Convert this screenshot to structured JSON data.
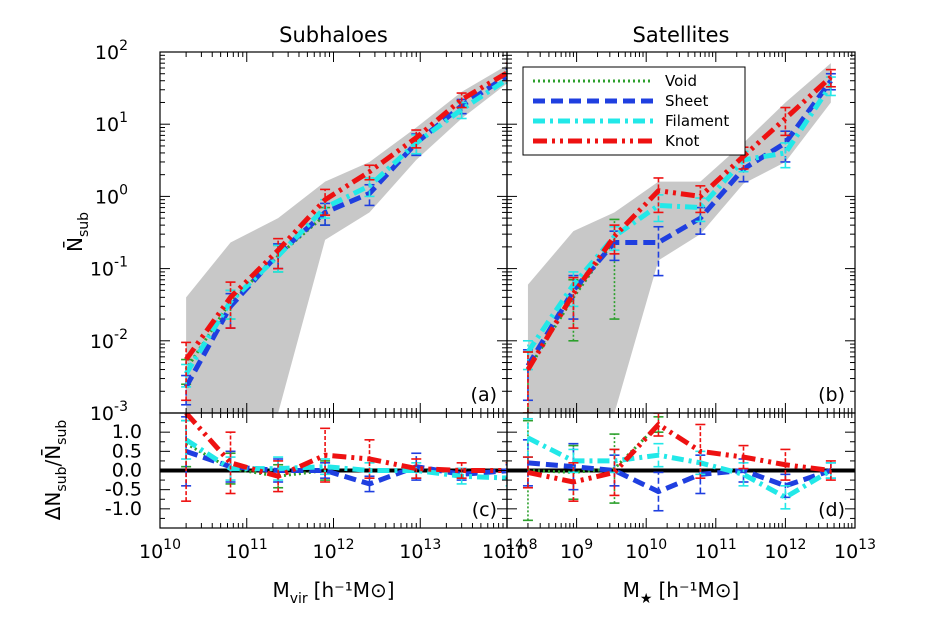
{
  "colors": {
    "void": "#2ca02c",
    "sheet": "#1f3fe0",
    "filament": "#22e8e8",
    "knot": "#ee1111",
    "band": "#c8c8c8"
  },
  "chart_data": [
    {
      "panel": "a",
      "type": "line",
      "title": "Subhaloes",
      "tag": "(a)",
      "xlabel_main": "M",
      "xlabel_sub": "vir",
      "xlabel_unit": "[h⁻¹M⊙]",
      "ylabel_main": "N̄",
      "ylabel_sub": "sub",
      "xscale": "log",
      "yscale": "log",
      "xlim": [
        10000000000.0,
        100000000000000.0
      ],
      "ylim": [
        0.001,
        100
      ],
      "xticks": [
        {
          "base": "10",
          "exp": "10"
        },
        {
          "base": "10",
          "exp": "11"
        },
        {
          "base": "10",
          "exp": "12"
        },
        {
          "base": "10",
          "exp": "13"
        },
        {
          "base": "10",
          "exp": "14"
        }
      ],
      "yticks": [
        {
          "base": "10",
          "exp": "-3"
        },
        {
          "base": "10",
          "exp": "-2"
        },
        {
          "base": "10",
          "exp": "-1"
        },
        {
          "base": "10",
          "exp": "0"
        },
        {
          "base": "10",
          "exp": "1"
        },
        {
          "base": "10",
          "exp": "2"
        }
      ],
      "legend": "none",
      "band": {
        "x": [
          20000000000.0,
          65000000000.0,
          230000000000.0,
          800000000000.0,
          2600000000000.0,
          9000000000000.0,
          30000000000000.0,
          110000000000000.0
        ],
        "upper": [
          0.04,
          0.23,
          0.5,
          1.6,
          3.0,
          9.0,
          28,
          70
        ],
        "lower": [
          0.001,
          0.001,
          0.001,
          0.25,
          0.6,
          3.2,
          12,
          40
        ]
      },
      "series": [
        {
          "key": "void",
          "x": [
            20000000000.0,
            65000000000.0,
            230000000000.0,
            800000000000.0
          ],
          "y": [
            0.004,
            0.035,
            0.15,
            0.55
          ],
          "err": [
            0.0015,
            0.015,
            0.06,
            0.15
          ]
        },
        {
          "key": "sheet",
          "x": [
            20000000000.0,
            65000000000.0,
            230000000000.0,
            800000000000.0,
            2600000000000.0,
            9000000000000.0,
            30000000000000.0,
            110000000000000.0
          ],
          "y": [
            0.0023,
            0.03,
            0.16,
            0.6,
            1.1,
            5.5,
            18,
            50
          ],
          "err": [
            0.001,
            0.015,
            0.06,
            0.2,
            0.35,
            1.8,
            4,
            8
          ]
        },
        {
          "key": "filament",
          "x": [
            20000000000.0,
            65000000000.0,
            230000000000.0,
            800000000000.0,
            2600000000000.0,
            9000000000000.0,
            30000000000000.0,
            110000000000000.0
          ],
          "y": [
            0.0035,
            0.035,
            0.15,
            0.7,
            1.4,
            5.5,
            16,
            45
          ],
          "err": [
            0.0012,
            0.015,
            0.06,
            0.2,
            0.4,
            1.6,
            4,
            8
          ]
        },
        {
          "key": "knot",
          "x": [
            20000000000.0,
            65000000000.0,
            230000000000.0,
            800000000000.0,
            2600000000000.0,
            9000000000000.0,
            30000000000000.0,
            110000000000000.0
          ],
          "y": [
            0.0055,
            0.04,
            0.18,
            0.9,
            2.2,
            6.5,
            22,
            55
          ],
          "err": [
            0.004,
            0.025,
            0.08,
            0.35,
            0.5,
            1.8,
            5,
            15
          ]
        }
      ]
    },
    {
      "panel": "b",
      "type": "line",
      "title": "Satellites",
      "tag": "(b)",
      "xlabel_main": "M",
      "xlabel_sub": "★",
      "xlabel_unit": "[h⁻¹M⊙]",
      "xscale": "log",
      "yscale": "log",
      "xlim": [
        100000000.0,
        10000000000000.0
      ],
      "ylim": [
        0.001,
        100
      ],
      "xticks": [
        {
          "base": "10",
          "exp": "8"
        },
        {
          "base": "10",
          "exp": "9"
        },
        {
          "base": "10",
          "exp": "10"
        },
        {
          "base": "10",
          "exp": "11"
        },
        {
          "base": "10",
          "exp": "12"
        },
        {
          "base": "10",
          "exp": "13"
        }
      ],
      "legend": "top-right",
      "band": {
        "x": [
          200000000.0,
          900000000.0,
          3500000000.0,
          15000000000.0,
          60000000000.0,
          250000000000.0,
          1000000000000.0,
          4500000000000.0
        ],
        "upper": [
          0.06,
          0.33,
          0.6,
          1.6,
          1.6,
          5.5,
          20,
          70
        ],
        "lower": [
          0.001,
          0.001,
          0.001,
          0.13,
          0.3,
          1.5,
          3.0,
          20
        ]
      },
      "series": [
        {
          "key": "void",
          "x": [
            200000000.0,
            900000000.0,
            3500000000.0
          ],
          "y": [
            0.004,
            0.04,
            0.25
          ],
          "err": [
            0.003,
            0.03,
            0.23
          ]
        },
        {
          "key": "sheet",
          "x": [
            200000000.0,
            900000000.0,
            3500000000.0,
            15000000000.0,
            60000000000.0,
            250000000000.0,
            1000000000000.0,
            4500000000000.0
          ],
          "y": [
            0.0045,
            0.05,
            0.23,
            0.23,
            0.5,
            2.4,
            5.5,
            40
          ],
          "err": [
            0.003,
            0.03,
            0.1,
            0.15,
            0.2,
            0.8,
            2.5,
            10
          ]
        },
        {
          "key": "filament",
          "x": [
            200000000.0,
            900000000.0,
            3500000000.0,
            15000000000.0,
            60000000000.0,
            250000000000.0,
            1000000000000.0,
            4500000000000.0
          ],
          "y": [
            0.007,
            0.06,
            0.28,
            0.75,
            0.7,
            3.2,
            4.0,
            35
          ],
          "err": [
            0.003,
            0.03,
            0.1,
            0.3,
            0.25,
            1.0,
            1.5,
            10
          ]
        },
        {
          "key": "knot",
          "x": [
            200000000.0,
            900000000.0,
            3500000000.0,
            15000000000.0,
            60000000000.0,
            250000000000.0,
            1000000000000.0,
            4500000000000.0
          ],
          "y": [
            0.004,
            0.045,
            0.28,
            1.2,
            1.0,
            3.6,
            12,
            45
          ],
          "err": [
            0.003,
            0.03,
            0.12,
            0.6,
            0.4,
            1.2,
            5,
            12
          ]
        }
      ],
      "legend_entries": [
        {
          "key": "void",
          "label": "Void"
        },
        {
          "key": "sheet",
          "label": "Sheet"
        },
        {
          "key": "filament",
          "label": "Filament"
        },
        {
          "key": "knot",
          "label": "Knot"
        }
      ]
    },
    {
      "panel": "c",
      "type": "line",
      "tag": "(c)",
      "ylabel_top": "ΔN",
      "ylabel_top_sub": "sub",
      "ylabel_bottom": "N̄",
      "ylabel_bottom_sub": "sub",
      "xscale": "log",
      "xlim": [
        10000000000.0,
        100000000000000.0
      ],
      "ylim": [
        -1.5,
        1.5
      ],
      "yticks": [
        "-1.0",
        "-0.5",
        "0.0",
        "0.5",
        "1.0"
      ],
      "series": [
        {
          "key": "void",
          "x": [
            20000000000.0,
            65000000000.0,
            230000000000.0,
            800000000000.0
          ],
          "y": [
            0.7,
            0.05,
            -0.15,
            0.0
          ],
          "err": [
            0.6,
            0.4,
            0.3,
            0.25
          ]
        },
        {
          "key": "sheet",
          "x": [
            20000000000.0,
            65000000000.0,
            230000000000.0,
            800000000000.0,
            2600000000000.0,
            9000000000000.0,
            30000000000000.0,
            110000000000000.0
          ],
          "y": [
            0.5,
            0.1,
            0.0,
            0.0,
            -0.35,
            0.1,
            -0.1,
            0.0
          ],
          "err": [
            0.9,
            0.4,
            0.3,
            0.2,
            0.2,
            0.35,
            0.15,
            0.15
          ]
        },
        {
          "key": "filament",
          "x": [
            20000000000.0,
            65000000000.0,
            230000000000.0,
            800000000000.0,
            2600000000000.0,
            9000000000000.0,
            30000000000000.0,
            110000000000000.0
          ],
          "y": [
            0.8,
            0.05,
            0.05,
            0.1,
            0.0,
            0.0,
            -0.15,
            -0.2
          ],
          "err": [
            0.5,
            0.3,
            0.3,
            0.2,
            0.2,
            0.2,
            0.2,
            0.2
          ]
        },
        {
          "key": "knot",
          "x": [
            20000000000.0,
            65000000000.0,
            230000000000.0,
            800000000000.0,
            2600000000000.0,
            9000000000000.0,
            30000000000000.0,
            110000000000000.0
          ],
          "y": [
            1.5,
            0.2,
            -0.15,
            0.4,
            0.3,
            0.05,
            0.0,
            0.0
          ],
          "err": [
            2.3,
            0.8,
            0.4,
            0.7,
            0.5,
            0.25,
            0.2,
            0.2
          ]
        }
      ]
    },
    {
      "panel": "d",
      "type": "line",
      "tag": "(d)",
      "xscale": "log",
      "xlim": [
        100000000.0,
        10000000000000.0
      ],
      "ylim": [
        -1.5,
        1.5
      ],
      "series": [
        {
          "key": "void",
          "x": [
            200000000.0,
            900000000.0,
            3500000000.0,
            15000000000.0
          ],
          "y": [
            0.0,
            -0.05,
            0.05,
            1.2
          ],
          "err": [
            1.3,
            0.7,
            0.9,
            0.2
          ]
        },
        {
          "key": "sheet",
          "x": [
            200000000.0,
            900000000.0,
            3500000000.0,
            15000000000.0,
            60000000000.0,
            250000000000.0,
            1000000000000.0,
            4500000000000.0
          ],
          "y": [
            0.2,
            0.1,
            0.0,
            -0.55,
            -0.1,
            0.0,
            -0.4,
            0.0
          ],
          "err": [
            0.6,
            0.6,
            0.4,
            0.5,
            0.5,
            0.3,
            0.3,
            0.2
          ]
        },
        {
          "key": "filament",
          "x": [
            200000000.0,
            900000000.0,
            3500000000.0,
            15000000000.0,
            60000000000.0,
            250000000000.0,
            1000000000000.0,
            4500000000000.0
          ],
          "y": [
            0.85,
            0.25,
            0.25,
            0.4,
            0.2,
            -0.1,
            -0.7,
            0.0
          ],
          "err": [
            0.5,
            0.3,
            0.3,
            0.3,
            0.3,
            0.3,
            0.3,
            0.2
          ]
        },
        {
          "key": "knot",
          "x": [
            200000000.0,
            900000000.0,
            3500000000.0,
            15000000000.0,
            60000000000.0,
            250000000000.0,
            1000000000000.0,
            4500000000000.0
          ],
          "y": [
            -0.05,
            -0.3,
            -0.05,
            1.2,
            0.5,
            0.35,
            0.15,
            0.0
          ],
          "err": [
            0.4,
            0.5,
            0.6,
            0.3,
            0.7,
            0.3,
            0.4,
            0.25
          ]
        }
      ]
    }
  ]
}
